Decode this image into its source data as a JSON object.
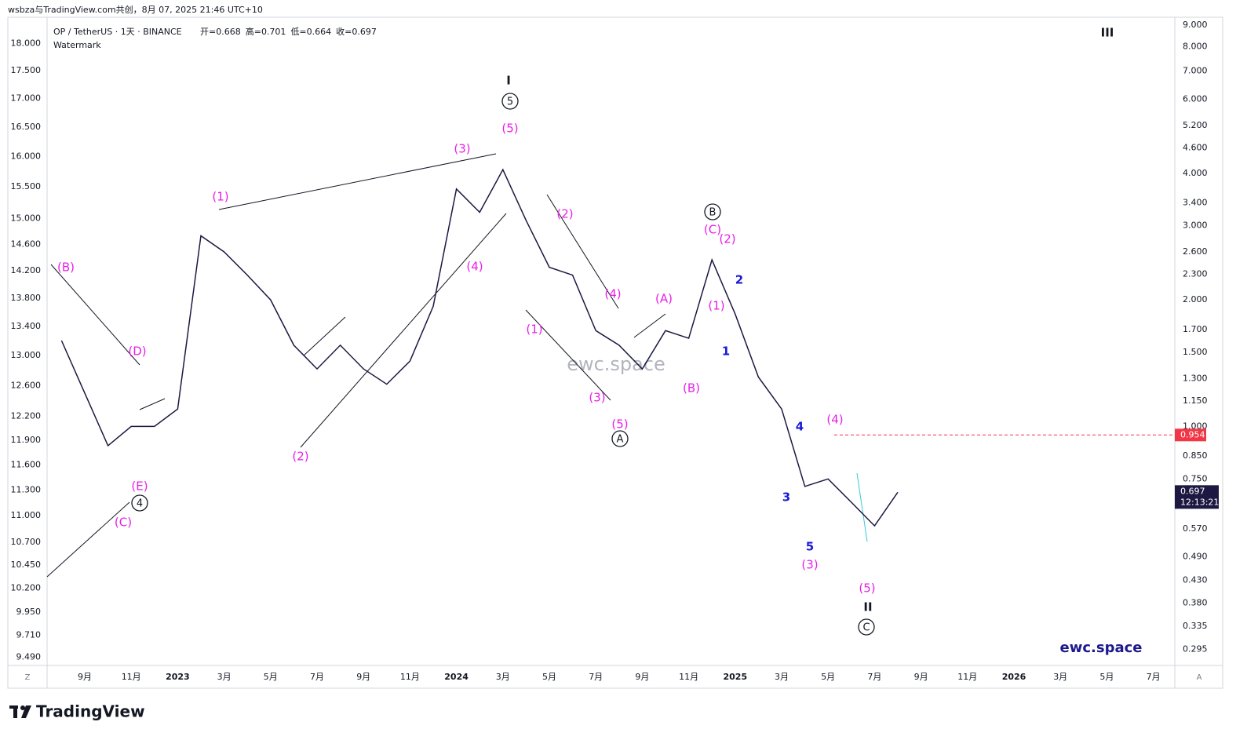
{
  "chart_data": {
    "type": "line",
    "credit": "wsbza与TradingView.com共创，8月 07, 2025 21:46 UTC+10",
    "title": "OP / TetherUS · 1天 · BINANCE",
    "ohlc": [
      {
        "label": "开=",
        "value": 0.668
      },
      {
        "label": "高=",
        "value": 0.701
      },
      {
        "label": "低=",
        "value": 0.664
      },
      {
        "label": "收=",
        "value": 0.697
      }
    ],
    "subtitle": "Watermark",
    "watermark": "ewc.space",
    "signature": "ewc.space",
    "brand": "TradingView",
    "left_button": "Z",
    "right_button": "A",
    "log_scale": true,
    "grid": false,
    "x": [
      "2022-08",
      "2022-09",
      "2022-10",
      "2022-11",
      "2022-12",
      "2023-01",
      "2023-02",
      "2023-03",
      "2023-04",
      "2023-05",
      "2023-06",
      "2023-07",
      "2023-08",
      "2023-09",
      "2023-10",
      "2023-11",
      "2023-12",
      "2024-01",
      "2024-02",
      "2024-03",
      "2024-04",
      "2024-05",
      "2024-06",
      "2024-07",
      "2024-08",
      "2024-09",
      "2024-10",
      "2024-11",
      "2024-12",
      "2025-01",
      "2025-02",
      "2025-03",
      "2025-04",
      "2025-05",
      "2025-06",
      "2025-07",
      "2025-08"
    ],
    "series": [
      {
        "name": "OP / TetherUS",
        "color": "#1c1842",
        "axis": "y2",
        "values": [
          1.6,
          1.2,
          0.9,
          1.0,
          1.0,
          1.1,
          2.84,
          2.6,
          2.29,
          2.0,
          1.56,
          1.37,
          1.56,
          1.37,
          1.26,
          1.43,
          1.93,
          3.67,
          3.23,
          4.08,
          3.09,
          2.39,
          2.29,
          1.69,
          1.56,
          1.37,
          1.69,
          1.62,
          2.49,
          1.85,
          1.31,
          1.1,
          0.72,
          0.75,
          0.66,
          0.58,
          0.697
        ]
      }
    ],
    "xticks": [
      {
        "value": "2022-09",
        "label": "9月"
      },
      {
        "value": "2022-11",
        "label": "11月"
      },
      {
        "value": "2023-01",
        "label": "2023"
      },
      {
        "value": "2023-03",
        "label": "3月"
      },
      {
        "value": "2023-05",
        "label": "5月"
      },
      {
        "value": "2023-07",
        "label": "7月"
      },
      {
        "value": "2023-09",
        "label": "9月"
      },
      {
        "value": "2023-11",
        "label": "11月"
      },
      {
        "value": "2024-01",
        "label": "2024"
      },
      {
        "value": "2024-03",
        "label": "3月"
      },
      {
        "value": "2024-05",
        "label": "5月"
      },
      {
        "value": "2024-07",
        "label": "7月"
      },
      {
        "value": "2024-09",
        "label": "9月"
      },
      {
        "value": "2024-11",
        "label": "11月"
      },
      {
        "value": "2025-01",
        "label": "2025"
      },
      {
        "value": "2025-03",
        "label": "3月"
      },
      {
        "value": "2025-05",
        "label": "5月"
      },
      {
        "value": "2025-07",
        "label": "7月"
      },
      {
        "value": "2025-09",
        "label": "9月"
      },
      {
        "value": "2025-11",
        "label": "11月"
      },
      {
        "value": "2026-01",
        "label": "2026"
      },
      {
        "value": "2026-03",
        "label": "3月"
      },
      {
        "value": "2026-05",
        "label": "5月"
      },
      {
        "value": "2026-07",
        "label": "7月"
      }
    ],
    "ylim": [
      9.41,
      18.5
    ],
    "yticks": [
      {
        "value": 18,
        "label": "18.000"
      },
      {
        "value": 17.5,
        "label": "17.500"
      },
      {
        "value": 17,
        "label": "17.000"
      },
      {
        "value": 16.5,
        "label": "16.500"
      },
      {
        "value": 16,
        "label": "16.000"
      },
      {
        "value": 15.5,
        "label": "15.500"
      },
      {
        "value": 15,
        "label": "15.000"
      },
      {
        "value": 14.6,
        "label": "14.600"
      },
      {
        "value": 14.2,
        "label": "14.200"
      },
      {
        "value": 13.8,
        "label": "13.800"
      },
      {
        "value": 13.4,
        "label": "13.400"
      },
      {
        "value": 13,
        "label": "13.000"
      },
      {
        "value": 12.6,
        "label": "12.600"
      },
      {
        "value": 12.2,
        "label": "12.200"
      },
      {
        "value": 11.9,
        "label": "11.900"
      },
      {
        "value": 11.6,
        "label": "11.600"
      },
      {
        "value": 11.3,
        "label": "11.300"
      },
      {
        "value": 11,
        "label": "11.000"
      },
      {
        "value": 10.7,
        "label": "10.700"
      },
      {
        "value": 10.45,
        "label": "10.450"
      },
      {
        "value": 10.2,
        "label": "10.200"
      },
      {
        "value": 9.95,
        "label": "9.950"
      },
      {
        "value": 9.71,
        "label": "9.710"
      },
      {
        "value": 9.49,
        "label": "9.490"
      }
    ],
    "y2lim": [
      0.27,
      9.4
    ],
    "y2ticks": [
      {
        "value": 9,
        "label": "9.000"
      },
      {
        "value": 8,
        "label": "8.000"
      },
      {
        "value": 7,
        "label": "7.000"
      },
      {
        "value": 6,
        "label": "6.000"
      },
      {
        "value": 5.2,
        "label": "5.200"
      },
      {
        "value": 4.6,
        "label": "4.600"
      },
      {
        "value": 4,
        "label": "4.000"
      },
      {
        "value": 3.4,
        "label": "3.400"
      },
      {
        "value": 3,
        "label": "3.000"
      },
      {
        "value": 2.6,
        "label": "2.600"
      },
      {
        "value": 2.3,
        "label": "2.300"
      },
      {
        "value": 2,
        "label": "2.000"
      },
      {
        "value": 1.7,
        "label": "1.700"
      },
      {
        "value": 1.5,
        "label": "1.500"
      },
      {
        "value": 1.3,
        "label": "1.300"
      },
      {
        "value": 1.15,
        "label": "1.150"
      },
      {
        "value": 1,
        "label": "1.000"
      },
      {
        "value": 0.85,
        "label": "0.850"
      },
      {
        "value": 0.75,
        "label": "0.750"
      },
      {
        "value": 0.57,
        "label": "0.570"
      },
      {
        "value": 0.49,
        "label": "0.490"
      },
      {
        "value": 0.43,
        "label": "0.430"
      },
      {
        "value": 0.38,
        "label": "0.380"
      },
      {
        "value": 0.335,
        "label": "0.335"
      },
      {
        "value": 0.295,
        "label": "0.295"
      }
    ],
    "reference_line": {
      "value": 0.954,
      "label": "0.954",
      "color": "#f23645"
    },
    "last_price": {
      "value": 0.697,
      "label": "0.697",
      "countdown": "12:13:21",
      "color": "#1c1842"
    },
    "annotations": [
      {
        "text": "I",
        "color": "#131722"
      },
      {
        "text": "5",
        "color": "#131722",
        "circled": true
      },
      {
        "text": "(5)",
        "color": "#e91ee8"
      },
      {
        "text": "(3)",
        "color": "#e91ee8"
      },
      {
        "text": "(1)",
        "color": "#e91ee8"
      },
      {
        "text": "(B)",
        "color": "#e91ee8"
      },
      {
        "text": "(D)",
        "color": "#e91ee8"
      },
      {
        "text": "(E)",
        "color": "#e91ee8"
      },
      {
        "text": "4",
        "color": "#131722",
        "circled": true
      },
      {
        "text": "(C)",
        "color": "#e91ee8"
      },
      {
        "text": "(2)",
        "color": "#e91ee8"
      },
      {
        "text": "(4)",
        "color": "#e91ee8"
      },
      {
        "text": "(2)",
        "color": "#e91ee8"
      },
      {
        "text": "(4)",
        "color": "#e91ee8"
      },
      {
        "text": "(1)",
        "color": "#e91ee8"
      },
      {
        "text": "(3)",
        "color": "#e91ee8"
      },
      {
        "text": "(5)",
        "color": "#e91ee8"
      },
      {
        "text": "A",
        "color": "#131722",
        "circled": true
      },
      {
        "text": "(A)",
        "color": "#e91ee8"
      },
      {
        "text": "(B)",
        "color": "#e91ee8"
      },
      {
        "text": "B",
        "color": "#131722",
        "circled": true
      },
      {
        "text": "(C)",
        "color": "#e91ee8"
      },
      {
        "text": "(2)",
        "color": "#e91ee8"
      },
      {
        "text": "(1)",
        "color": "#e91ee8"
      },
      {
        "text": "2",
        "color": "#1a1ad6"
      },
      {
        "text": "1",
        "color": "#1a1ad6"
      },
      {
        "text": "4",
        "color": "#1a1ad6"
      },
      {
        "text": "3",
        "color": "#1a1ad6"
      },
      {
        "text": "5",
        "color": "#1a1ad6"
      },
      {
        "text": "(3)",
        "color": "#e91ee8"
      },
      {
        "text": "(4)",
        "color": "#e91ee8"
      },
      {
        "text": "(5)",
        "color": "#e91ee8"
      },
      {
        "text": "II",
        "color": "#131722"
      },
      {
        "text": "C",
        "color": "#131722",
        "circled": true
      },
      {
        "text": "III",
        "color": "#131722"
      }
    ]
  }
}
